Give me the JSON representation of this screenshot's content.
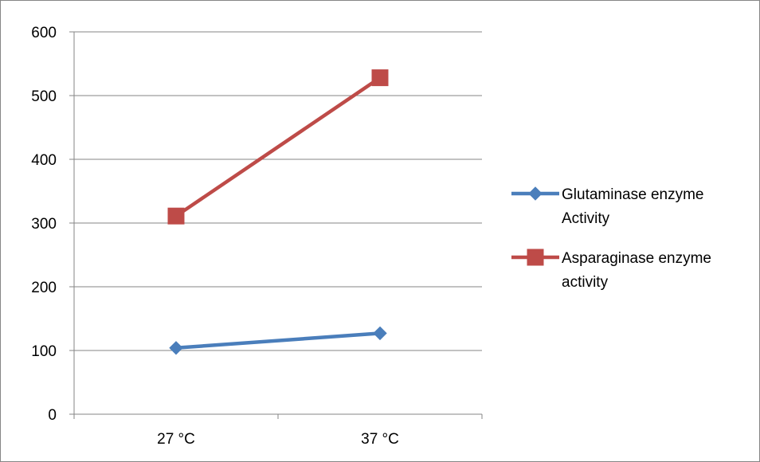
{
  "chart_data": {
    "type": "line",
    "categories": [
      "27 °C",
      "37 °C"
    ],
    "ylim": [
      0,
      600
    ],
    "yticks": [
      "0",
      "100",
      "200",
      "300",
      "400",
      "500",
      "600"
    ],
    "grid": true,
    "legend_position": "right",
    "series": [
      {
        "name": "Glutaminase enzyme Activity",
        "name_lines": [
          "Glutaminase enzyme",
          "Activity"
        ],
        "values": [
          104,
          127
        ],
        "color": "#4a7ebb",
        "marker": "diamond"
      },
      {
        "name": "Asparaginase enzyme activity",
        "name_lines": [
          "Asparaginase enzyme",
          "activity"
        ],
        "values": [
          311,
          528
        ],
        "color": "#be4b48",
        "marker": "square"
      }
    ]
  }
}
